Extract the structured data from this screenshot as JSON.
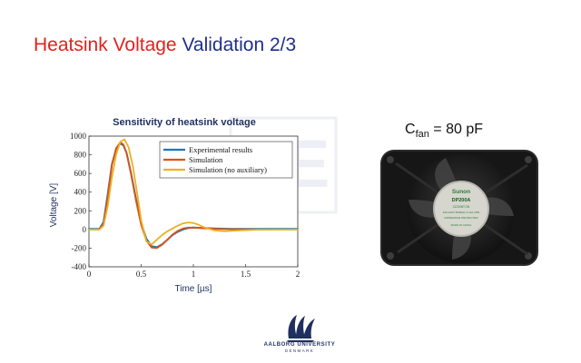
{
  "slide": {
    "title_part1": "Heatsink Voltage",
    "title_part2": " Validation 2/3",
    "title_color_red": "#e0221e",
    "title_color_blue": "#1f2f8f"
  },
  "fan": {
    "label_main": "C",
    "label_sub": "fan",
    "label_value": " = 80 pF",
    "sticker_brand": "Sunon",
    "sticker_model": "DP200A",
    "sticker_line2": "2123XBT.GN",
    "sticker_line3": "220-240V 50/60Hz 0.14A 15W",
    "sticker_line4": "IMPEDANCE PROTECTED",
    "sticker_line5": "MADE IN CHINA"
  },
  "university": {
    "name": "AALBORG UNIVERSITY",
    "country": "DENMARK"
  },
  "chart_data": {
    "type": "line",
    "title": "Sensitivity of heatsink voltage",
    "xlabel": "Time [µs]",
    "ylabel": "Voltage [V]",
    "xlim": [
      0,
      2
    ],
    "ylim": [
      -400,
      1000
    ],
    "xticks": [
      "0",
      "0.5",
      "1",
      "1.5",
      "2"
    ],
    "yticks": [
      "-400",
      "-200",
      "0",
      "200",
      "400",
      "600",
      "800",
      "1000"
    ],
    "grid": false,
    "legend_position": "top-right",
    "series": [
      {
        "name": "Experimental results",
        "color": "#1f77b4",
        "x": [
          0,
          0.1,
          0.14,
          0.18,
          0.22,
          0.26,
          0.3,
          0.33,
          0.36,
          0.4,
          0.45,
          0.5,
          0.55,
          0.6,
          0.65,
          0.7,
          0.75,
          0.8,
          0.85,
          0.9,
          0.95,
          1.0,
          1.1,
          1.2,
          1.4,
          1.6,
          2.0
        ],
        "y": [
          5,
          5,
          80,
          380,
          700,
          860,
          920,
          900,
          820,
          620,
          330,
          70,
          -100,
          -180,
          -190,
          -160,
          -110,
          -60,
          -25,
          0,
          15,
          20,
          15,
          10,
          5,
          5,
          5
        ]
      },
      {
        "name": "Simulation",
        "color": "#d95319",
        "x": [
          0,
          0.1,
          0.14,
          0.18,
          0.22,
          0.26,
          0.3,
          0.33,
          0.36,
          0.4,
          0.45,
          0.5,
          0.55,
          0.6,
          0.65,
          0.7,
          0.75,
          0.8,
          0.85,
          0.9,
          0.95,
          1.0,
          1.1,
          1.2,
          1.4,
          1.6,
          2.0
        ],
        "y": [
          0,
          0,
          60,
          350,
          690,
          870,
          935,
          910,
          820,
          610,
          310,
          50,
          -120,
          -195,
          -200,
          -165,
          -110,
          -55,
          -15,
          10,
          20,
          20,
          12,
          6,
          2,
          0,
          0
        ]
      },
      {
        "name": "Simulation (no auxiliary)",
        "color": "#edb120",
        "x": [
          0,
          0.1,
          0.14,
          0.18,
          0.22,
          0.26,
          0.3,
          0.34,
          0.38,
          0.42,
          0.46,
          0.5,
          0.55,
          0.6,
          0.65,
          0.7,
          0.75,
          0.8,
          0.85,
          0.9,
          0.95,
          1.0,
          1.05,
          1.1,
          1.2,
          1.3,
          1.4,
          1.6,
          2.0
        ],
        "y": [
          0,
          0,
          40,
          250,
          560,
          800,
          940,
          965,
          880,
          680,
          400,
          100,
          -130,
          -160,
          -110,
          -60,
          -20,
          10,
          40,
          65,
          75,
          70,
          50,
          25,
          -10,
          -20,
          -12,
          -3,
          0
        ]
      }
    ]
  }
}
